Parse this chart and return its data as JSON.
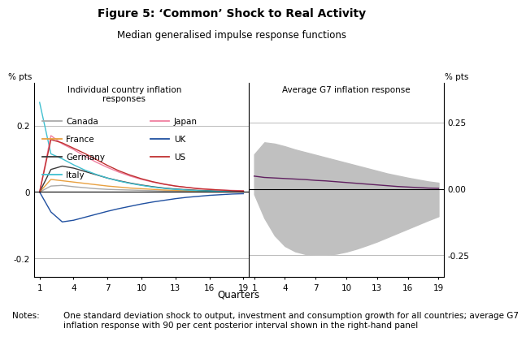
{
  "title": "Figure 5: ‘Common’ Shock to Real Activity",
  "subtitle": "Median generalised impulse response functions",
  "left_panel_title": "Individual country inflation\nresponses",
  "right_panel_title": "Average G7 inflation response",
  "ylabel_left": "% pts",
  "ylabel_right": "% pts",
  "xlabel": "Quarters",
  "notes_label": "Notes:",
  "notes_body": "One standard deviation shock to output, investment and consumption growth for all countries; average G7\ninflation response with 90 per cent posterior interval shown in the right-hand panel",
  "left_xticks": [
    1,
    4,
    7,
    10,
    13,
    16,
    19
  ],
  "right_xticks": [
    1,
    4,
    7,
    10,
    13,
    16,
    19
  ],
  "left_ylim": [
    -0.255,
    0.33
  ],
  "right_ylim": [
    -0.33,
    0.4
  ],
  "left_yticks": [
    -0.2,
    0.0,
    0.2
  ],
  "right_yticks": [
    -0.25,
    0.0,
    0.25
  ],
  "left_yticklabels": [
    "-0.2",
    "0",
    "0.2"
  ],
  "right_yticklabels": [
    "-0.25",
    "0.00",
    "0.25"
  ],
  "countries": {
    "Canada": {
      "color": "#aaaaaa",
      "x": [
        0,
        1,
        2,
        3,
        4,
        5,
        6,
        7,
        8,
        9,
        10,
        11,
        12,
        13,
        14,
        15,
        16,
        17,
        18
      ],
      "values": [
        0.0,
        0.018,
        0.02,
        0.016,
        0.013,
        0.01,
        0.008,
        0.007,
        0.006,
        0.005,
        0.004,
        0.003,
        0.003,
        0.002,
        0.002,
        0.001,
        0.001,
        0.001,
        0.001
      ]
    },
    "France": {
      "color": "#e8a040",
      "x": [
        0,
        1,
        2,
        3,
        4,
        5,
        6,
        7,
        8,
        9,
        10,
        11,
        12,
        13,
        14,
        15,
        16,
        17,
        18
      ],
      "values": [
        0.0,
        0.038,
        0.034,
        0.03,
        0.026,
        0.022,
        0.018,
        0.015,
        0.012,
        0.01,
        0.008,
        0.006,
        0.005,
        0.004,
        0.003,
        0.002,
        0.002,
        0.001,
        0.001
      ]
    },
    "Germany": {
      "color": "#3a3a3a",
      "x": [
        0,
        1,
        2,
        3,
        4,
        5,
        6,
        7,
        8,
        9,
        10,
        11,
        12,
        13,
        14,
        15,
        16,
        17,
        18
      ],
      "values": [
        0.0,
        0.068,
        0.078,
        0.072,
        0.062,
        0.052,
        0.042,
        0.034,
        0.027,
        0.021,
        0.016,
        0.012,
        0.009,
        0.007,
        0.005,
        0.004,
        0.003,
        0.002,
        0.002
      ]
    },
    "Italy": {
      "color": "#40c0d0",
      "x": [
        0,
        1,
        2,
        3,
        4,
        5,
        6,
        7,
        8,
        9,
        10,
        11,
        12,
        13,
        14,
        15,
        16,
        17,
        18
      ],
      "values": [
        0.27,
        0.115,
        0.1,
        0.082,
        0.066,
        0.053,
        0.042,
        0.033,
        0.026,
        0.02,
        0.015,
        0.011,
        0.008,
        0.006,
        0.004,
        0.003,
        0.002,
        0.002,
        0.001
      ]
    },
    "Japan": {
      "color": "#f080a0",
      "x": [
        0,
        1,
        2,
        3,
        4,
        5,
        6,
        7,
        8,
        9,
        10,
        11,
        12,
        13,
        14,
        15,
        16,
        17,
        18
      ],
      "values": [
        0.0,
        0.17,
        0.145,
        0.128,
        0.108,
        0.09,
        0.074,
        0.06,
        0.048,
        0.038,
        0.03,
        0.023,
        0.018,
        0.014,
        0.011,
        0.008,
        0.006,
        0.005,
        0.004
      ]
    },
    "UK": {
      "color": "#2050a0",
      "x": [
        0,
        1,
        2,
        3,
        4,
        5,
        6,
        7,
        8,
        9,
        10,
        11,
        12,
        13,
        14,
        15,
        16,
        17,
        18
      ],
      "values": [
        0.0,
        -0.06,
        -0.09,
        -0.085,
        -0.076,
        -0.067,
        -0.058,
        -0.05,
        -0.043,
        -0.036,
        -0.03,
        -0.025,
        -0.02,
        -0.016,
        -0.013,
        -0.01,
        -0.008,
        -0.006,
        -0.005
      ]
    },
    "US": {
      "color": "#c03030",
      "x": [
        0,
        1,
        2,
        3,
        4,
        5,
        6,
        7,
        8,
        9,
        10,
        11,
        12,
        13,
        14,
        15,
        16,
        17,
        18
      ],
      "values": [
        0.0,
        0.158,
        0.148,
        0.132,
        0.116,
        0.098,
        0.08,
        0.064,
        0.051,
        0.04,
        0.031,
        0.024,
        0.018,
        0.014,
        0.01,
        0.008,
        0.006,
        0.004,
        0.003
      ]
    }
  },
  "right_panel": {
    "quarters": [
      1,
      2,
      3,
      4,
      5,
      6,
      7,
      8,
      9,
      10,
      11,
      12,
      13,
      14,
      15,
      16,
      17,
      18,
      19
    ],
    "median": [
      0.048,
      0.043,
      0.041,
      0.039,
      0.037,
      0.035,
      0.032,
      0.03,
      0.027,
      0.024,
      0.021,
      0.018,
      0.015,
      0.012,
      0.009,
      0.007,
      0.005,
      0.003,
      0.002
    ],
    "upper": [
      0.13,
      0.175,
      0.17,
      0.16,
      0.148,
      0.138,
      0.128,
      0.118,
      0.108,
      0.098,
      0.088,
      0.078,
      0.068,
      0.058,
      0.05,
      0.042,
      0.035,
      0.028,
      0.023
    ],
    "lower": [
      -0.02,
      -0.11,
      -0.175,
      -0.215,
      -0.235,
      -0.245,
      -0.248,
      -0.248,
      -0.244,
      -0.236,
      -0.225,
      -0.212,
      -0.198,
      -0.182,
      -0.166,
      -0.15,
      -0.134,
      -0.118,
      -0.103
    ],
    "median_color": "#602060",
    "band_color": "#c0c0c0"
  },
  "grid_color": "#b0b0b0",
  "zero_line_color": "#000000",
  "background_color": "#ffffff"
}
